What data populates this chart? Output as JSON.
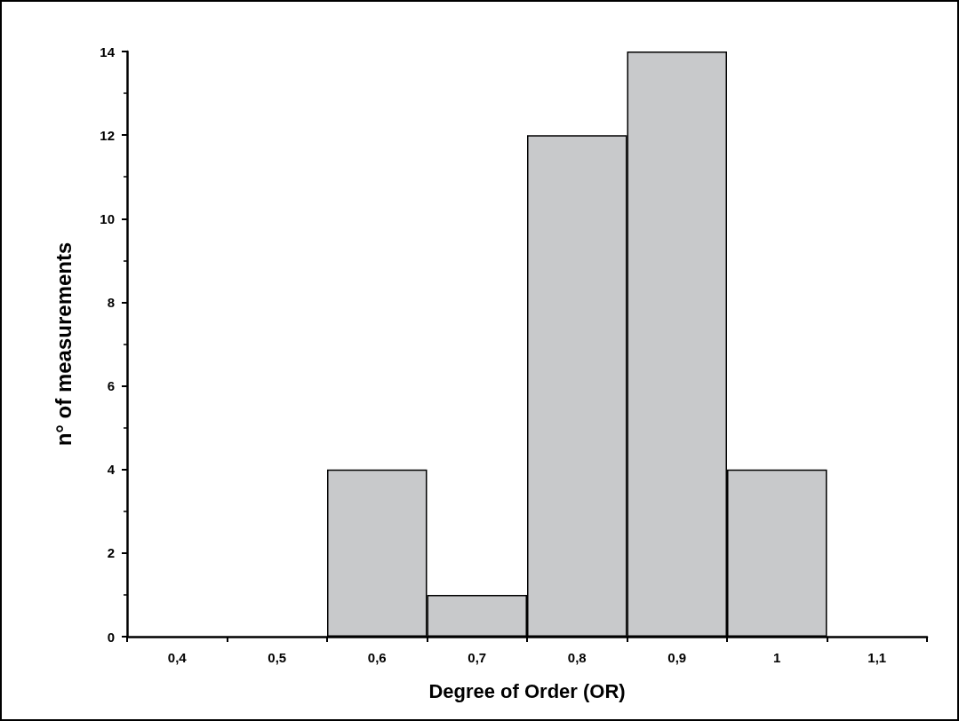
{
  "chart_data": {
    "type": "bar",
    "xlabel": "Degree of Order (OR)",
    "ylabel": "n° of measurements",
    "categories": [
      "0,4",
      "0,5",
      "0,6",
      "0,7",
      "0,8",
      "0,9",
      "1",
      "1,1"
    ],
    "values": [
      0,
      0,
      4,
      1,
      12,
      14,
      4,
      0
    ],
    "color": "#c8c9cb",
    "ylim": [
      0,
      14
    ],
    "yticks": [
      0,
      2,
      4,
      6,
      8,
      10,
      12,
      14
    ],
    "grid": false
  }
}
